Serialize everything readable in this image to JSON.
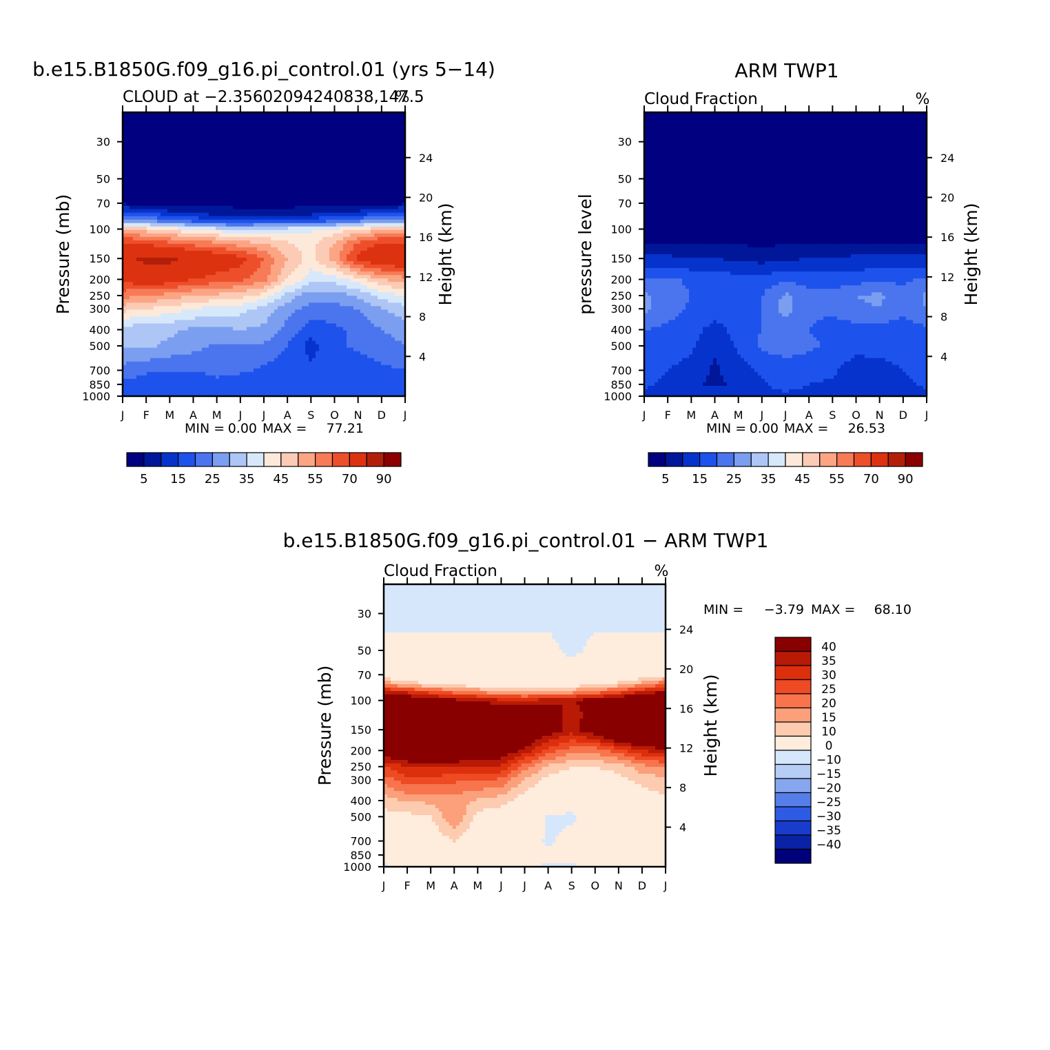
{
  "chart_data": [
    {
      "type": "heatmap",
      "id": "model",
      "title": "b.e15.B1850G.f09_g16.pi_control.01 (yrs 5-14)",
      "subtitle": "CLOUD at -2.35602094240838,147.5",
      "units": "%",
      "ylabel": "Pressure (mb)",
      "ylabel_right": "Height (km)",
      "x_ticks": [
        "J",
        "F",
        "M",
        "A",
        "M",
        "J",
        "J",
        "A",
        "S",
        "O",
        "N",
        "D",
        "J"
      ],
      "y_ticks": [
        "30",
        "50",
        "70",
        "100",
        "150",
        "200",
        "250",
        "300",
        "400",
        "500",
        "700",
        "850",
        "1000"
      ],
      "y_ticks_right": [
        "24",
        "20",
        "16",
        "12",
        "8",
        "4"
      ],
      "y_scale": "log pressure",
      "ylim": [
        1000,
        20
      ],
      "min_label": "MIN =",
      "min": "0.00",
      "max_label": "MAX =",
      "max": "77.21",
      "colorbar_labels": [
        "5",
        "15",
        "25",
        "35",
        "45",
        "55",
        "70",
        "90"
      ],
      "colorbar_placement": "bottom",
      "levels": [
        1,
        5,
        10,
        15,
        20,
        25,
        30,
        35,
        40,
        45,
        50,
        55,
        60,
        70,
        80,
        90
      ],
      "grid": {
        "pressures": [
          20,
          30,
          50,
          70,
          80,
          90,
          100,
          120,
          150,
          200,
          250,
          300,
          400,
          500,
          700,
          850,
          1000
        ],
        "months": [
          "J",
          "F",
          "M",
          "A",
          "M",
          "J",
          "J",
          "A",
          "S",
          "O",
          "N",
          "D",
          "J"
        ],
        "values": [
          [
            0,
            0,
            0,
            0,
            0,
            0,
            0,
            0,
            0,
            0,
            0,
            0,
            0
          ],
          [
            0,
            0,
            0,
            0,
            0,
            0,
            0,
            0,
            0,
            0,
            0,
            0,
            0
          ],
          [
            0,
            0,
            0,
            0,
            0,
            0,
            0,
            0,
            0,
            0,
            0,
            0,
            0
          ],
          [
            0,
            0,
            0,
            0,
            0,
            0,
            0,
            0,
            0,
            0,
            0,
            0,
            0
          ],
          [
            12,
            10,
            6,
            4,
            3,
            2,
            2,
            2,
            3,
            4,
            6,
            10,
            12
          ],
          [
            25,
            22,
            18,
            15,
            12,
            10,
            12,
            12,
            14,
            16,
            20,
            24,
            25
          ],
          [
            45,
            42,
            38,
            35,
            32,
            30,
            32,
            32,
            34,
            36,
            40,
            44,
            45
          ],
          [
            60,
            58,
            55,
            52,
            50,
            46,
            44,
            40,
            38,
            45,
            55,
            60,
            60
          ],
          [
            68,
            72,
            72,
            68,
            65,
            62,
            55,
            45,
            38,
            48,
            62,
            68,
            68
          ],
          [
            62,
            65,
            64,
            60,
            58,
            56,
            52,
            40,
            32,
            32,
            38,
            45,
            48
          ],
          [
            52,
            50,
            48,
            45,
            44,
            42,
            38,
            28,
            22,
            22,
            26,
            32,
            35
          ],
          [
            42,
            40,
            38,
            35,
            33,
            32,
            28,
            22,
            18,
            18,
            20,
            25,
            28
          ],
          [
            28,
            26,
            26,
            24,
            24,
            25,
            24,
            18,
            12,
            14,
            16,
            20,
            22
          ],
          [
            26,
            26,
            24,
            22,
            19,
            19,
            19,
            15,
            8,
            14,
            16,
            18,
            20
          ],
          [
            18,
            16,
            15,
            15,
            16,
            16,
            14,
            12,
            11,
            11,
            12,
            14,
            15
          ],
          [
            14,
            12,
            13,
            13,
            14,
            12,
            12,
            12,
            12,
            12,
            12,
            13,
            14
          ],
          [
            10,
            10,
            10,
            10,
            10,
            10,
            10,
            10,
            10,
            10,
            10,
            10,
            10
          ]
        ]
      }
    },
    {
      "type": "heatmap",
      "id": "obs",
      "title": "ARM TWP1",
      "subtitle": "Cloud Fraction",
      "units": "%",
      "ylabel": "pressure level",
      "ylabel_right": "Height (km)",
      "x_ticks": [
        "J",
        "F",
        "M",
        "A",
        "M",
        "J",
        "J",
        "A",
        "S",
        "O",
        "N",
        "D",
        "J"
      ],
      "y_ticks": [
        "30",
        "50",
        "70",
        "100",
        "150",
        "200",
        "250",
        "300",
        "400",
        "500",
        "700",
        "850",
        "1000"
      ],
      "y_ticks_right": [
        "24",
        "20",
        "16",
        "12",
        "8",
        "4"
      ],
      "y_scale": "log pressure",
      "ylim": [
        1000,
        20
      ],
      "min_label": "MIN =",
      "min": "0.00",
      "max_label": "MAX =",
      "max": "26.53",
      "colorbar_labels": [
        "5",
        "15",
        "25",
        "35",
        "45",
        "55",
        "70",
        "90"
      ],
      "colorbar_placement": "bottom",
      "levels": [
        1,
        5,
        10,
        15,
        20,
        25,
        30,
        35,
        40,
        45,
        50,
        55,
        60,
        70,
        80,
        90
      ],
      "grid": {
        "pressures": [
          20,
          30,
          50,
          70,
          80,
          90,
          100,
          120,
          150,
          200,
          250,
          300,
          400,
          500,
          700,
          850,
          1000
        ],
        "months": [
          "J",
          "F",
          "M",
          "A",
          "M",
          "J",
          "J",
          "A",
          "S",
          "O",
          "N",
          "D",
          "J"
        ],
        "values": [
          [
            0,
            0,
            0,
            0,
            0,
            0,
            0,
            0,
            0,
            0,
            0,
            0,
            0
          ],
          [
            0,
            0,
            0,
            0,
            0,
            0,
            0,
            0,
            0,
            0,
            0,
            0,
            0
          ],
          [
            0,
            0,
            0,
            0,
            0,
            0,
            0,
            0,
            0,
            0,
            0,
            0,
            0
          ],
          [
            0,
            0,
            0,
            0,
            0,
            0,
            0,
            0,
            0,
            0,
            0,
            0,
            0
          ],
          [
            0,
            0,
            0,
            0,
            0,
            0,
            0,
            0,
            0,
            0,
            0,
            0,
            0
          ],
          [
            0,
            0,
            0,
            0,
            0,
            0,
            0,
            0,
            0,
            0,
            0,
            0,
            0
          ],
          [
            0,
            0,
            0,
            0,
            0,
            0,
            0,
            0,
            0,
            0,
            0,
            0,
            0
          ],
          [
            1,
            0.8,
            0.6,
            0.5,
            0.4,
            0.3,
            0.4,
            0.5,
            0.6,
            0.7,
            0.8,
            0.9,
            1
          ],
          [
            6,
            6,
            5,
            5,
            4,
            3,
            4,
            5,
            5,
            6,
            6,
            6,
            6
          ],
          [
            16,
            16,
            14,
            13,
            12,
            12,
            14,
            13,
            13,
            13,
            14,
            14,
            16
          ],
          [
            21,
            18,
            15,
            13,
            13,
            15,
            21,
            16,
            16,
            20,
            21,
            16,
            21
          ],
          [
            21,
            17,
            14,
            13,
            13,
            15,
            22,
            16,
            16,
            19,
            20,
            16,
            20
          ],
          [
            15,
            14,
            12,
            8,
            12,
            15,
            18,
            15,
            13,
            13,
            13,
            13,
            14
          ],
          [
            13,
            13,
            11,
            6,
            11,
            16,
            17,
            16,
            14,
            12,
            12,
            12,
            13
          ],
          [
            11,
            10,
            8,
            4,
            8,
            11,
            13,
            12,
            11,
            7,
            8,
            10,
            11
          ],
          [
            11,
            9,
            6,
            4,
            6,
            9,
            13,
            10,
            9,
            7,
            7,
            9,
            11
          ],
          [
            8,
            8,
            8,
            8,
            8,
            8,
            8,
            8,
            8,
            8,
            8,
            8,
            8
          ]
        ]
      }
    },
    {
      "type": "heatmap",
      "id": "diff",
      "title": "b.e15.B1850G.f09_g16.pi_control.01 - ARM TWP1",
      "subtitle": "Cloud Fraction",
      "units": "%",
      "ylabel": "Pressure (mb)",
      "ylabel_right": "Height (km)",
      "x_ticks": [
        "J",
        "F",
        "M",
        "A",
        "M",
        "J",
        "J",
        "A",
        "S",
        "O",
        "N",
        "D",
        "J"
      ],
      "y_ticks": [
        "30",
        "50",
        "70",
        "100",
        "150",
        "200",
        "250",
        "300",
        "400",
        "500",
        "700",
        "850",
        "1000"
      ],
      "y_ticks_right": [
        "24",
        "20",
        "16",
        "12",
        "8",
        "4"
      ],
      "y_scale": "log pressure",
      "ylim": [
        1000,
        20
      ],
      "min_label": "MIN =",
      "min": "-3.79",
      "max_label": "MAX =",
      "max": "68.10",
      "colorbar_labels": [
        "40",
        "35",
        "30",
        "25",
        "20",
        "15",
        "10",
        "0",
        "-10",
        "-15",
        "-20",
        "-25",
        "-30",
        "-35",
        "-40"
      ],
      "colorbar_placement": "right",
      "levels": [
        -40,
        -35,
        -30,
        -25,
        -20,
        -15,
        -10,
        0,
        10,
        15,
        20,
        25,
        30,
        35,
        40
      ],
      "grid": {
        "pressures": [
          20,
          30,
          50,
          70,
          80,
          90,
          100,
          120,
          150,
          200,
          250,
          300,
          400,
          500,
          700,
          850,
          1000
        ],
        "months": [
          "J",
          "F",
          "M",
          "A",
          "M",
          "J",
          "J",
          "A",
          "S",
          "O",
          "N",
          "D",
          "J"
        ],
        "values": [
          [
            -0.5,
            -0.5,
            -0.5,
            -0.5,
            -0.5,
            -0.5,
            -0.5,
            -0.5,
            -0.5,
            -0.5,
            -0.5,
            -0.5,
            -0.5
          ],
          [
            -0.5,
            -0.5,
            -0.5,
            -0.5,
            -0.5,
            -0.5,
            -0.5,
            -0.5,
            -0.5,
            -0.5,
            -0.5,
            -0.5,
            -0.5
          ],
          [
            0.5,
            0.5,
            0.5,
            0.5,
            0.5,
            0.5,
            0.5,
            0.5,
            -0.5,
            0.5,
            0.5,
            0.5,
            0.5
          ],
          [
            4,
            3,
            2,
            2,
            1,
            1,
            1,
            1,
            1,
            2,
            3,
            5,
            8
          ],
          [
            20,
            14,
            10,
            8,
            6,
            5,
            5,
            6,
            7,
            9,
            12,
            18,
            25
          ],
          [
            40,
            35,
            30,
            25,
            22,
            18,
            16,
            18,
            20,
            24,
            30,
            38,
            42
          ],
          [
            50,
            48,
            45,
            42,
            40,
            36,
            36,
            38,
            40,
            45,
            50,
            52,
            55
          ],
          [
            58,
            58,
            55,
            52,
            50,
            48,
            48,
            48,
            36,
            45,
            58,
            60,
            60
          ],
          [
            60,
            62,
            62,
            60,
            58,
            56,
            52,
            44,
            38,
            45,
            58,
            62,
            62
          ],
          [
            45,
            52,
            52,
            50,
            48,
            46,
            38,
            28,
            22,
            22,
            28,
            35,
            38
          ],
          [
            30,
            35,
            36,
            36,
            35,
            34,
            22,
            14,
            10,
            10,
            12,
            18,
            20
          ],
          [
            22,
            28,
            28,
            26,
            26,
            24,
            14,
            8,
            6,
            6,
            8,
            12,
            14
          ],
          [
            12,
            16,
            16,
            18,
            14,
            12,
            7,
            4,
            1,
            4,
            5,
            6,
            9
          ],
          [
            8,
            8,
            10,
            20,
            8,
            6,
            3,
            -0.5,
            -0.5,
            2,
            3,
            4,
            5
          ],
          [
            4,
            4,
            5,
            10,
            5,
            3,
            2,
            -0.5,
            1,
            2,
            2,
            2,
            2
          ],
          [
            2,
            2,
            2,
            3,
            2,
            2,
            1,
            1,
            1,
            1,
            1,
            1,
            2
          ],
          [
            -0.5,
            1,
            1,
            1,
            1,
            1,
            1,
            -0.5,
            -0.5,
            1,
            1,
            1,
            1
          ]
        ]
      }
    }
  ],
  "palette": [
    "#000080",
    "#001799",
    "#0733cd",
    "#1e52ec",
    "#4a75ee",
    "#7b9ef0",
    "#adc6f5",
    "#d7e8fb",
    "#fde9da",
    "#fccbb5",
    "#fba585",
    "#f67b56",
    "#ee4f2b",
    "#dd3210",
    "#b21f09",
    "#8b0000"
  ],
  "diff_palette": [
    "#01007b",
    "#0a22a6",
    "#1a3ccc",
    "#2e5be3",
    "#567ee9",
    "#86a6f0",
    "#b6cdf6",
    "#d6e7fc",
    "#feecdd",
    "#fdcbb0",
    "#fba07a",
    "#f7744c",
    "#ee4a23",
    "#dc2f0c",
    "#b91a06",
    "#890001"
  ]
}
